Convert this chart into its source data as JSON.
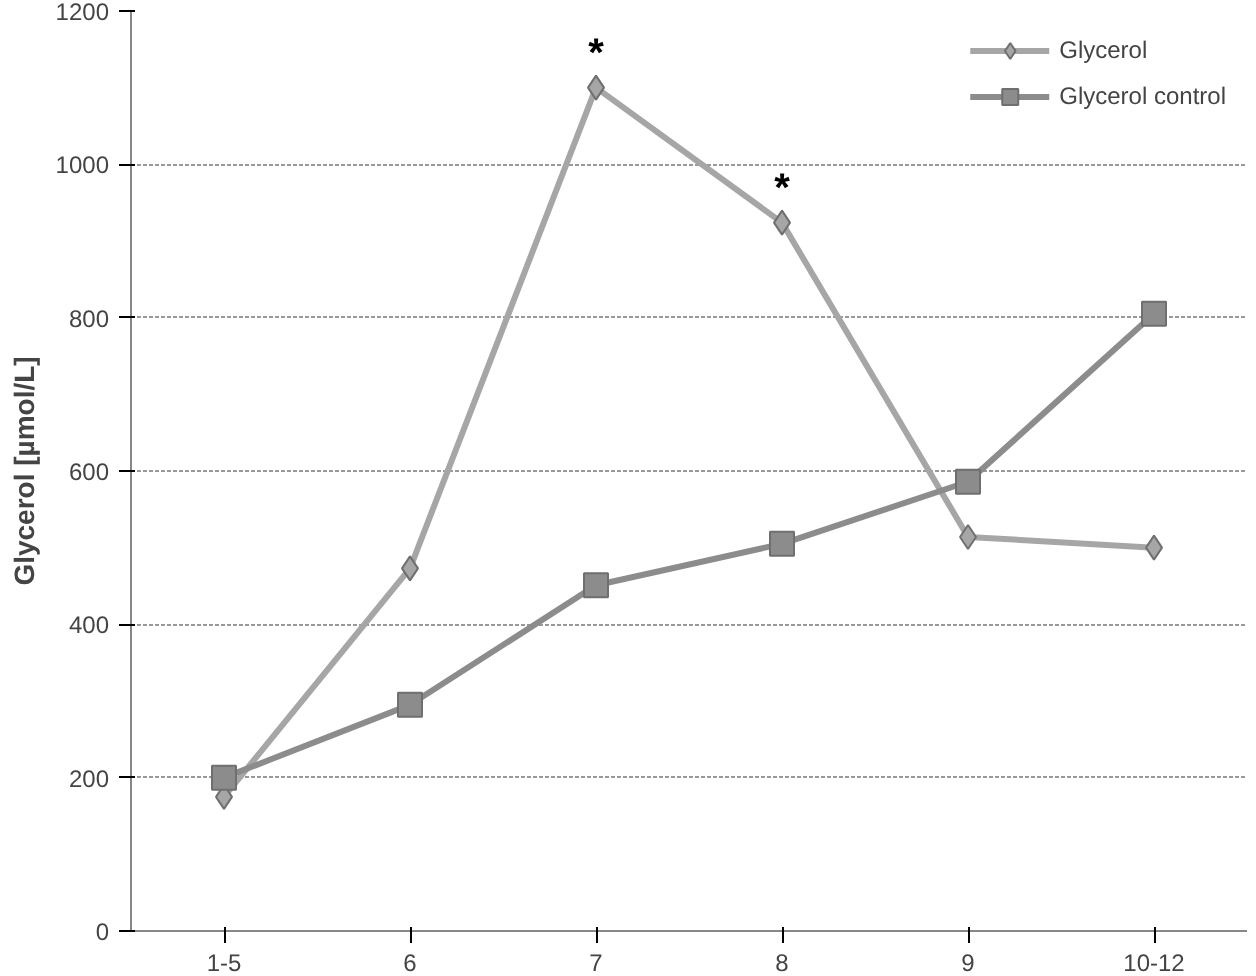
{
  "chart_data": {
    "type": "line",
    "ylabel": "Glycerol [µmol/L]",
    "categories": [
      "1-5",
      "6",
      "7",
      "8",
      "9",
      "10-12"
    ],
    "series": [
      {
        "name": "Glycerol",
        "color": "#a6a6a6",
        "marker": "diamond",
        "values": [
          175,
          473,
          1100,
          924,
          514,
          500
        ]
      },
      {
        "name": "Glycerol control",
        "color": "#8c8c8c",
        "marker": "square",
        "values": [
          200,
          295,
          451,
          505,
          586,
          805
        ]
      }
    ],
    "ylim": [
      0,
      1200
    ],
    "yticks": [
      0,
      200,
      400,
      600,
      800,
      1000,
      1200
    ],
    "grid": "y",
    "legend": "top right",
    "annotations": [
      {
        "text": "*",
        "x": "7",
        "y": 1100
      },
      {
        "text": "*",
        "x": "8",
        "y": 924
      }
    ]
  }
}
